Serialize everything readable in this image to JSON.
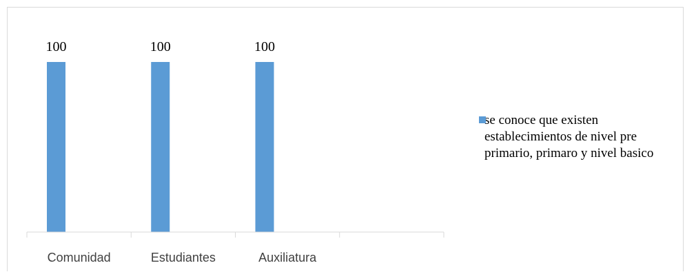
{
  "chart_data": {
    "type": "bar",
    "categories": [
      "Comunidad",
      "Estudiantes",
      "Auxiliatura",
      ""
    ],
    "series": [
      {
        "name": "se conoce que existen establecimientos de nivel pre primario, primaro y nivel basico",
        "values": [
          100,
          100,
          100,
          null
        ],
        "color": "#5b9bd5"
      }
    ],
    "data_labels": [
      "100",
      "100",
      "100"
    ],
    "ylim": [
      0,
      100
    ],
    "grid": false,
    "legend_position": "right"
  }
}
